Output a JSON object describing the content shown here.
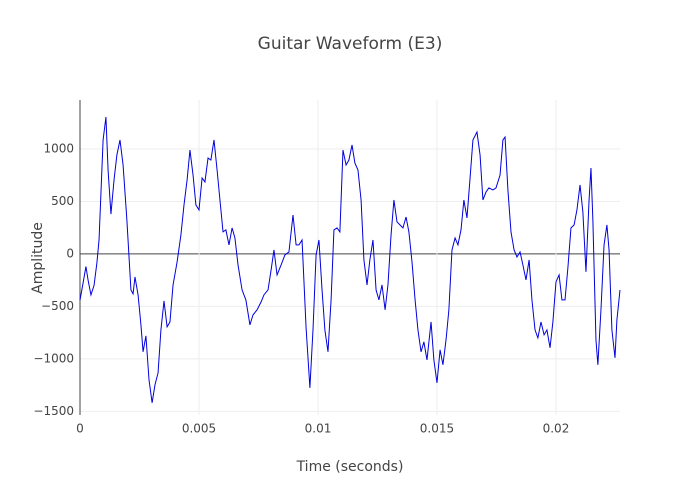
{
  "chart_data": {
    "type": "line",
    "title": "Guitar Waveform (E3)",
    "x_label": "Time (seconds)",
    "y_label": "Amplitude",
    "xlim": [
      0,
      0.02269
    ],
    "ylim": [
      -1535,
      1467
    ],
    "xticks": [
      0,
      0.005,
      0.01,
      0.015,
      0.02
    ],
    "yticks": [
      {
        "value": -1500,
        "label": "−1500"
      },
      {
        "value": -1000,
        "label": "−1000"
      },
      {
        "value": -500,
        "label": "−500"
      },
      0,
      500,
      1000
    ],
    "grid": true,
    "zeroline": true,
    "series": [
      {
        "color": "#0000dd",
        "x": [
          0,
          0.00013,
          0.00025,
          0.00034,
          0.00046,
          0.00059,
          0.00071,
          0.0008,
          0.00097,
          0.00109,
          0.00118,
          0.0013,
          0.00143,
          0.00155,
          0.00168,
          0.00181,
          0.00197,
          0.00214,
          0.00223,
          0.00231,
          0.00244,
          0.00256,
          0.00265,
          0.00277,
          0.0029,
          0.00303,
          0.00315,
          0.00328,
          0.0034,
          0.00353,
          0.00366,
          0.00378,
          0.00391,
          0.00408,
          0.00424,
          0.00437,
          0.0045,
          0.00462,
          0.00475,
          0.00487,
          0.005,
          0.00513,
          0.00525,
          0.00538,
          0.0055,
          0.00563,
          0.00576,
          0.00588,
          0.00601,
          0.00613,
          0.00626,
          0.00639,
          0.00651,
          0.00664,
          0.00681,
          0.00697,
          0.00714,
          0.00727,
          0.00744,
          0.00761,
          0.00773,
          0.0079,
          0.00803,
          0.00815,
          0.00828,
          0.00845,
          0.00861,
          0.00878,
          0.00895,
          0.00908,
          0.0092,
          0.00933,
          0.0095,
          0.00966,
          0.00979,
          0.00992,
          0.01004,
          0.01017,
          0.01029,
          0.01042,
          0.01055,
          0.01067,
          0.0108,
          0.01092,
          0.01105,
          0.01118,
          0.0113,
          0.01143,
          0.01155,
          0.01168,
          0.01181,
          0.01193,
          0.01206,
          0.01218,
          0.01231,
          0.01244,
          0.01256,
          0.01269,
          0.01282,
          0.01294,
          0.01307,
          0.01319,
          0.01332,
          0.01345,
          0.01357,
          0.0137,
          0.01382,
          0.01395,
          0.01408,
          0.0142,
          0.01433,
          0.01445,
          0.01458,
          0.01475,
          0.01487,
          0.015,
          0.01513,
          0.01525,
          0.01538,
          0.0155,
          0.01563,
          0.01576,
          0.01588,
          0.01601,
          0.01613,
          0.01626,
          0.01639,
          0.01651,
          0.01668,
          0.01681,
          0.01693,
          0.01706,
          0.01718,
          0.01735,
          0.01748,
          0.01765,
          0.01777,
          0.01786,
          0.01798,
          0.01811,
          0.01824,
          0.01836,
          0.01849,
          0.01861,
          0.01874,
          0.01887,
          0.01899,
          0.01912,
          0.01924,
          0.01937,
          0.0195,
          0.01962,
          0.01975,
          0.01987,
          0.02,
          0.02013,
          0.02025,
          0.02038,
          0.0205,
          0.02063,
          0.02076,
          0.02088,
          0.02101,
          0.02113,
          0.02126,
          0.02139,
          0.02147,
          0.02155,
          0.02168,
          0.02176,
          0.02189,
          0.02202,
          0.02214,
          0.02223,
          0.02235,
          0.02248,
          0.02256,
          0.02269
        ],
        "values": [
          -440,
          -276,
          -120,
          -250,
          -390,
          -300,
          -85,
          133,
          1086,
          1305,
          800,
          380,
          705,
          943,
          1086,
          848,
          324,
          -343,
          -381,
          -219,
          -390,
          -676,
          -933,
          -781,
          -1200,
          -1419,
          -1248,
          -1133,
          -724,
          -448,
          -695,
          -648,
          -295,
          -76,
          181,
          467,
          705,
          990,
          752,
          467,
          419,
          724,
          686,
          914,
          895,
          1086,
          800,
          514,
          210,
          229,
          86,
          248,
          152,
          -105,
          -343,
          -438,
          -676,
          -581,
          -533,
          -457,
          -390,
          -343,
          -152,
          38,
          -200,
          -105,
          -10,
          19,
          371,
          86,
          86,
          133,
          -705,
          -1276,
          -724,
          -10,
          133,
          -343,
          -724,
          -933,
          -438,
          229,
          248,
          210,
          990,
          848,
          895,
          1038,
          867,
          800,
          514,
          -57,
          -295,
          -57,
          133,
          -343,
          -438,
          -295,
          -533,
          -295,
          181,
          514,
          305,
          276,
          248,
          352,
          210,
          -76,
          -438,
          -724,
          -933,
          -838,
          -1010,
          -648,
          -1010,
          -1229,
          -914,
          -1057,
          -819,
          -533,
          38,
          152,
          86,
          229,
          514,
          343,
          724,
          1086,
          1162,
          943,
          514,
          590,
          629,
          610,
          629,
          752,
          1086,
          1114,
          610,
          210,
          38,
          -29,
          19,
          -105,
          -248,
          -57,
          -438,
          -724,
          -800,
          -648,
          -771,
          -724,
          -895,
          -648,
          -267,
          -200,
          -438,
          -438,
          -133,
          248,
          276,
          419,
          657,
          400,
          -171,
          514,
          819,
          324,
          -819,
          -1057,
          -533,
          86,
          276,
          38,
          -724,
          -990,
          -629,
          -343
        ]
      }
    ]
  }
}
